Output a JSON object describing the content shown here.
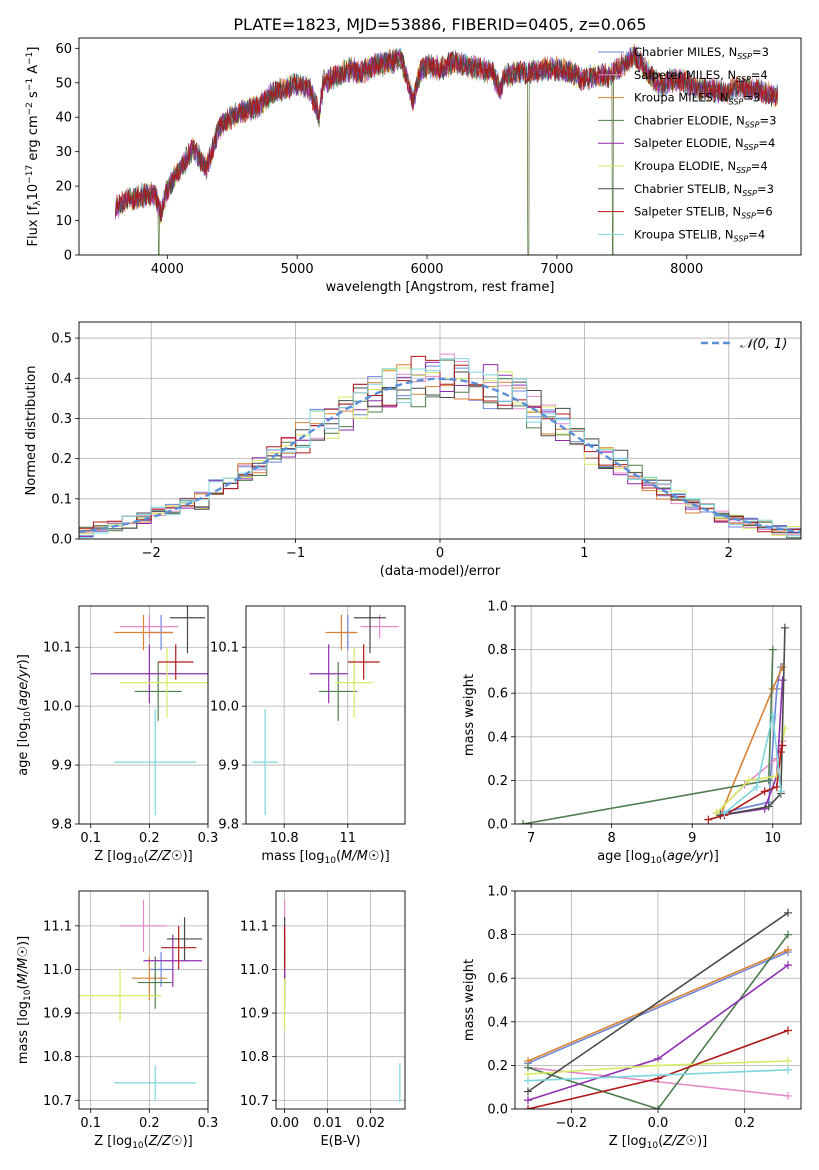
{
  "figure_title": "PLATE=1823, MJD=53886, FIBERID=0405, z=0.065",
  "series_names": [
    "Chabrier MILES",
    "Salpeter MILES",
    "Kroupa MILES",
    "Chabrier ELODIE",
    "Salpeter ELODIE",
    "Kroupa ELODIE",
    "Chabrier STELIB",
    "Salpeter STELIB",
    "Kroupa STELIB"
  ],
  "colors": [
    "#6b86d8",
    "#e48ac7",
    "#d98236",
    "#4f7d4f",
    "#8f2fb0",
    "#d7ea64",
    "#4a4a4a",
    "#b01818",
    "#7fd6de"
  ],
  "chart_data": [
    {
      "id": "spectrum",
      "type": "line",
      "xlabel": "wavelength [Angstrom, rest frame]",
      "ylabel": "Flux [f",
      "ylabel_parts": [
        "Flux [f",
        "λ",
        "10",
        "−17",
        " erg cm",
        "−2",
        " s",
        "−1",
        " A",
        "−1",
        "]"
      ],
      "xlim": [
        3320,
        8880
      ],
      "ylim": [
        0,
        63
      ],
      "xticks": [
        4000,
        5000,
        6000,
        7000,
        8000
      ],
      "yticks": [
        0,
        10,
        20,
        30,
        40,
        50,
        60
      ],
      "legend_position": "upper-right",
      "legend": [
        {
          "name": "Chabrier MILES",
          "nssp": "3"
        },
        {
          "name": "Salpeter MILES",
          "nssp": "4"
        },
        {
          "name": "Kroupa MILES",
          "nssp": "3"
        },
        {
          "name": "Chabrier ELODIE",
          "nssp": "3"
        },
        {
          "name": "Salpeter ELODIE",
          "nssp": "4"
        },
        {
          "name": "Kroupa ELODIE",
          "nssp": "4"
        },
        {
          "name": "Chabrier STELIB",
          "nssp": "3"
        },
        {
          "name": "Salpeter STELIB",
          "nssp": "6"
        },
        {
          "name": "Kroupa STELIB",
          "nssp": "4"
        }
      ],
      "legend_label_sub": "SSP",
      "x": [
        3600,
        3700,
        3800,
        3900,
        3950,
        4000,
        4100,
        4200,
        4300,
        4400,
        4500,
        4600,
        4700,
        4800,
        4900,
        5000,
        5100,
        5170,
        5200,
        5300,
        5400,
        5500,
        5600,
        5700,
        5800,
        5890,
        5950,
        6000,
        6100,
        6200,
        6300,
        6400,
        6500,
        6563,
        6600,
        6700,
        6800,
        6900,
        7000,
        7100,
        7200,
        7300,
        7400,
        7500,
        7600,
        7700,
        7800,
        7900,
        8000,
        8100,
        8200,
        8300,
        8400,
        8500,
        8600,
        8700
      ],
      "y": [
        14,
        16,
        17,
        18,
        12,
        19,
        25,
        31,
        25,
        37,
        40,
        42,
        43,
        47,
        48,
        50,
        48,
        40,
        50,
        52,
        54,
        53,
        55,
        56,
        57,
        45,
        53,
        55,
        54,
        56,
        55,
        54,
        53,
        48,
        52,
        53,
        53,
        54,
        54,
        53,
        51,
        52,
        52,
        55,
        58,
        53,
        49,
        51,
        50,
        48,
        48,
        47,
        49,
        48,
        47,
        46
      ],
      "dips": [
        [
          3934,
          0
        ],
        [
          6780,
          0
        ],
        [
          7430,
          0
        ]
      ]
    },
    {
      "id": "residuals",
      "type": "histogram",
      "xlabel": "(data-model)/error",
      "ylabel": "Normed distribution",
      "xlim": [
        -2.5,
        2.5
      ],
      "ylim": [
        0,
        0.54
      ],
      "xticks": [
        -2,
        -1,
        0,
        1,
        2
      ],
      "yticks": [
        0.0,
        0.1,
        0.2,
        0.3,
        0.4,
        0.5
      ],
      "legend": [
        {
          "name": "𝒩(0, 1)"
        }
      ],
      "legend_position": "upper-right",
      "bins": {
        "start": -2.5,
        "width": 0.1,
        "count": 50
      },
      "gaussian": {
        "mu": 0,
        "sigma": 1
      }
    },
    {
      "id": "age-vs-Z",
      "type": "scatter",
      "xlabel": "Z [log10(Z/Z☉)]",
      "ylabel": "age [log10(age/yr)]",
      "xlim": [
        0.08,
        0.3
      ],
      "ylim": [
        9.8,
        10.17
      ],
      "xticks": [
        0.1,
        0.2,
        0.3
      ],
      "yticks": [
        9.8,
        9.9,
        10.0,
        10.1
      ],
      "points": [
        {
          "x": 0.22,
          "y": 10.125,
          "xerr": 0.02,
          "yerr": 0.03
        },
        {
          "x": 0.2,
          "y": 10.135,
          "xerr": 0.05,
          "yerr": 0.02
        },
        {
          "x": 0.19,
          "y": 10.125,
          "xerr": 0.05,
          "yerr": 0.03
        },
        {
          "x": 0.215,
          "y": 10.025,
          "xerr": 0.04,
          "yerr": 0.05
        },
        {
          "x": 0.2,
          "y": 10.055,
          "xerr": 0.1,
          "yerr": 0.05
        },
        {
          "x": 0.23,
          "y": 10.04,
          "xerr": 0.08,
          "yerr": 0.06
        },
        {
          "x": 0.265,
          "y": 10.15,
          "xerr": 0.03,
          "yerr": 0.06
        },
        {
          "x": 0.245,
          "y": 10.075,
          "xerr": 0.03,
          "yerr": 0.03
        },
        {
          "x": 0.21,
          "y": 9.905,
          "xerr": 0.07,
          "yerr": 0.09
        }
      ]
    },
    {
      "id": "age-vs-mass",
      "type": "scatter",
      "xlabel": "mass [log10(M/M☉)]",
      "ylabel": "",
      "xlim": [
        10.68,
        11.18
      ],
      "ylim": [
        9.8,
        10.17
      ],
      "xticks": [
        10.8,
        11.0
      ],
      "yticks": [
        9.8,
        9.9,
        10.0,
        10.1
      ],
      "points": [
        {
          "x": 11.0,
          "y": 10.125,
          "xerr": 0.02,
          "yerr": 0.03
        },
        {
          "x": 11.1,
          "y": 10.135,
          "xerr": 0.06,
          "yerr": 0.02
        },
        {
          "x": 10.98,
          "y": 10.125,
          "xerr": 0.05,
          "yerr": 0.03
        },
        {
          "x": 10.97,
          "y": 10.025,
          "xerr": 0.06,
          "yerr": 0.05
        },
        {
          "x": 10.94,
          "y": 10.055,
          "xerr": 0.06,
          "yerr": 0.05
        },
        {
          "x": 11.02,
          "y": 10.04,
          "xerr": 0.06,
          "yerr": 0.06
        },
        {
          "x": 11.07,
          "y": 10.15,
          "xerr": 0.05,
          "yerr": 0.06
        },
        {
          "x": 11.05,
          "y": 10.075,
          "xerr": 0.05,
          "yerr": 0.03
        },
        {
          "x": 10.74,
          "y": 9.905,
          "xerr": 0.04,
          "yerr": 0.09
        }
      ]
    },
    {
      "id": "weight-vs-age",
      "type": "line",
      "xlabel": "age [log10(age/yr)]",
      "ylabel": "mass weight",
      "xlim": [
        6.8,
        10.35
      ],
      "ylim": [
        0,
        1.0
      ],
      "xticks": [
        7,
        8,
        9,
        10
      ],
      "yticks": [
        0.0,
        0.2,
        0.4,
        0.6,
        0.8,
        1.0
      ],
      "series": [
        {
          "name": "Chabrier MILES",
          "x": [
            9.35,
            9.95,
            10.05,
            10.1
          ],
          "y": [
            0.05,
            0.1,
            0.62,
            0.72
          ]
        },
        {
          "name": "Salpeter MILES",
          "x": [
            9.3,
            9.65,
            10.05,
            10.12
          ],
          "y": [
            0.05,
            0.18,
            0.3,
            0.38
          ]
        },
        {
          "name": "Kroupa MILES",
          "x": [
            9.35,
            10.0,
            10.12
          ],
          "y": [
            0.04,
            0.62,
            0.72
          ]
        },
        {
          "name": "Chabrier ELODIE",
          "x": [
            6.9,
            9.95,
            10.0
          ],
          "y": [
            0.0,
            0.2,
            0.8
          ]
        },
        {
          "name": "Salpeter ELODIE",
          "x": [
            9.35,
            9.9,
            10.05,
            10.12
          ],
          "y": [
            0.04,
            0.07,
            0.22,
            0.66
          ]
        },
        {
          "name": "Kroupa ELODIE",
          "x": [
            9.3,
            9.7,
            10.05,
            10.15
          ],
          "y": [
            0.05,
            0.2,
            0.22,
            0.44
          ]
        },
        {
          "name": "Chabrier STELIB",
          "x": [
            9.35,
            9.95,
            10.1,
            10.15
          ],
          "y": [
            0.04,
            0.08,
            0.14,
            0.9
          ]
        },
        {
          "name": "Salpeter STELIB",
          "x": [
            9.2,
            9.4,
            9.9,
            10.05,
            10.1,
            10.12
          ],
          "y": [
            0.02,
            0.04,
            0.15,
            0.17,
            0.33,
            0.36
          ]
        },
        {
          "name": "Kroupa STELIB",
          "x": [
            9.4,
            9.8,
            10.0,
            10.1
          ],
          "y": [
            0.05,
            0.17,
            0.5,
            0.15
          ]
        }
      ]
    },
    {
      "id": "mass-vs-Z",
      "type": "scatter",
      "xlabel": "Z [log10(Z/Z☉)]",
      "ylabel": "mass [log10(M/M☉)]",
      "xlim": [
        0.08,
        0.3
      ],
      "ylim": [
        10.68,
        11.18
      ],
      "xticks": [
        0.1,
        0.2,
        0.3
      ],
      "yticks": [
        10.7,
        10.8,
        10.9,
        11.0,
        11.1
      ],
      "points": [
        {
          "x": 0.22,
          "y": 11.0,
          "xerr": 0.02,
          "yerr": 0.04
        },
        {
          "x": 0.19,
          "y": 11.1,
          "xerr": 0.04,
          "yerr": 0.06
        },
        {
          "x": 0.2,
          "y": 10.98,
          "xerr": 0.03,
          "yerr": 0.05
        },
        {
          "x": 0.21,
          "y": 10.97,
          "xerr": 0.03,
          "yerr": 0.06
        },
        {
          "x": 0.24,
          "y": 11.02,
          "xerr": 0.05,
          "yerr": 0.06
        },
        {
          "x": 0.15,
          "y": 10.94,
          "xerr": 0.07,
          "yerr": 0.06
        },
        {
          "x": 0.26,
          "y": 11.07,
          "xerr": 0.03,
          "yerr": 0.05
        },
        {
          "x": 0.25,
          "y": 11.05,
          "xerr": 0.03,
          "yerr": 0.05
        },
        {
          "x": 0.21,
          "y": 10.74,
          "xerr": 0.07,
          "yerr": 0.04
        }
      ]
    },
    {
      "id": "mass-vs-EBV",
      "type": "scatter",
      "xlabel": "E(B-V)",
      "ylabel": "",
      "xlim": [
        -0.002,
        0.028
      ],
      "ylim": [
        10.68,
        11.18
      ],
      "xticks": [
        0.0,
        0.01,
        0.02
      ],
      "xticklabels": [
        "0.00",
        "0.01",
        "0.02"
      ],
      "yticks": [
        10.7,
        10.8,
        10.9,
        11.0,
        11.1
      ],
      "points": [
        {
          "x": 0.0,
          "y": 11.0,
          "xerr": 0,
          "yerr": 0.04
        },
        {
          "x": 0.0,
          "y": 11.1,
          "xerr": 0,
          "yerr": 0.06
        },
        {
          "x": 0.0,
          "y": 10.98,
          "xerr": 0,
          "yerr": 0.05
        },
        {
          "x": 0.0,
          "y": 10.97,
          "xerr": 0,
          "yerr": 0.06
        },
        {
          "x": 0.0,
          "y": 11.02,
          "xerr": 0,
          "yerr": 0.06
        },
        {
          "x": 0.0,
          "y": 10.92,
          "xerr": 0,
          "yerr": 0.06
        },
        {
          "x": 0.0,
          "y": 11.07,
          "xerr": 0,
          "yerr": 0.05
        },
        {
          "x": 0.0,
          "y": 11.05,
          "xerr": 0,
          "yerr": 0.05
        },
        {
          "x": 0.0268,
          "y": 10.74,
          "xerr": 0,
          "yerr": 0.045
        }
      ]
    },
    {
      "id": "weight-vs-Z",
      "type": "line",
      "xlabel": "Z [log10(Z/Z☉)]",
      "ylabel": "mass weight",
      "xlim": [
        -0.33,
        0.33
      ],
      "ylim": [
        0,
        1.0
      ],
      "xticks": [
        -0.2,
        0.0,
        0.2
      ],
      "xticklabels": [
        "−0.2",
        "0.0",
        "0.2"
      ],
      "yticks": [
        0.0,
        0.2,
        0.4,
        0.6,
        0.8,
        1.0
      ],
      "series": [
        {
          "name": "Chabrier MILES",
          "x": [
            -0.3,
            0.3
          ],
          "y": [
            0.21,
            0.72
          ]
        },
        {
          "name": "Salpeter MILES",
          "x": [
            -0.3,
            0.3
          ],
          "y": [
            0.19,
            0.06
          ]
        },
        {
          "name": "Kroupa MILES",
          "x": [
            -0.3,
            0.3
          ],
          "y": [
            0.22,
            0.73
          ]
        },
        {
          "name": "Chabrier ELODIE",
          "x": [
            -0.3,
            0.0,
            0.3
          ],
          "y": [
            0.19,
            0.0,
            0.8
          ]
        },
        {
          "name": "Salpeter ELODIE",
          "x": [
            -0.3,
            0.0,
            0.3
          ],
          "y": [
            0.04,
            0.23,
            0.66
          ]
        },
        {
          "name": "Kroupa ELODIE",
          "x": [
            -0.3,
            0.0,
            0.3
          ],
          "y": [
            0.16,
            0.2,
            0.22
          ]
        },
        {
          "name": "Chabrier STELIB",
          "x": [
            -0.3,
            0.3
          ],
          "y": [
            0.08,
            0.9
          ]
        },
        {
          "name": "Salpeter STELIB",
          "x": [
            -0.3,
            0.0,
            0.3
          ],
          "y": [
            0.0,
            0.14,
            0.36
          ]
        },
        {
          "name": "Kroupa STELIB",
          "x": [
            -0.3,
            0.3
          ],
          "y": [
            0.13,
            0.18
          ]
        }
      ]
    }
  ]
}
